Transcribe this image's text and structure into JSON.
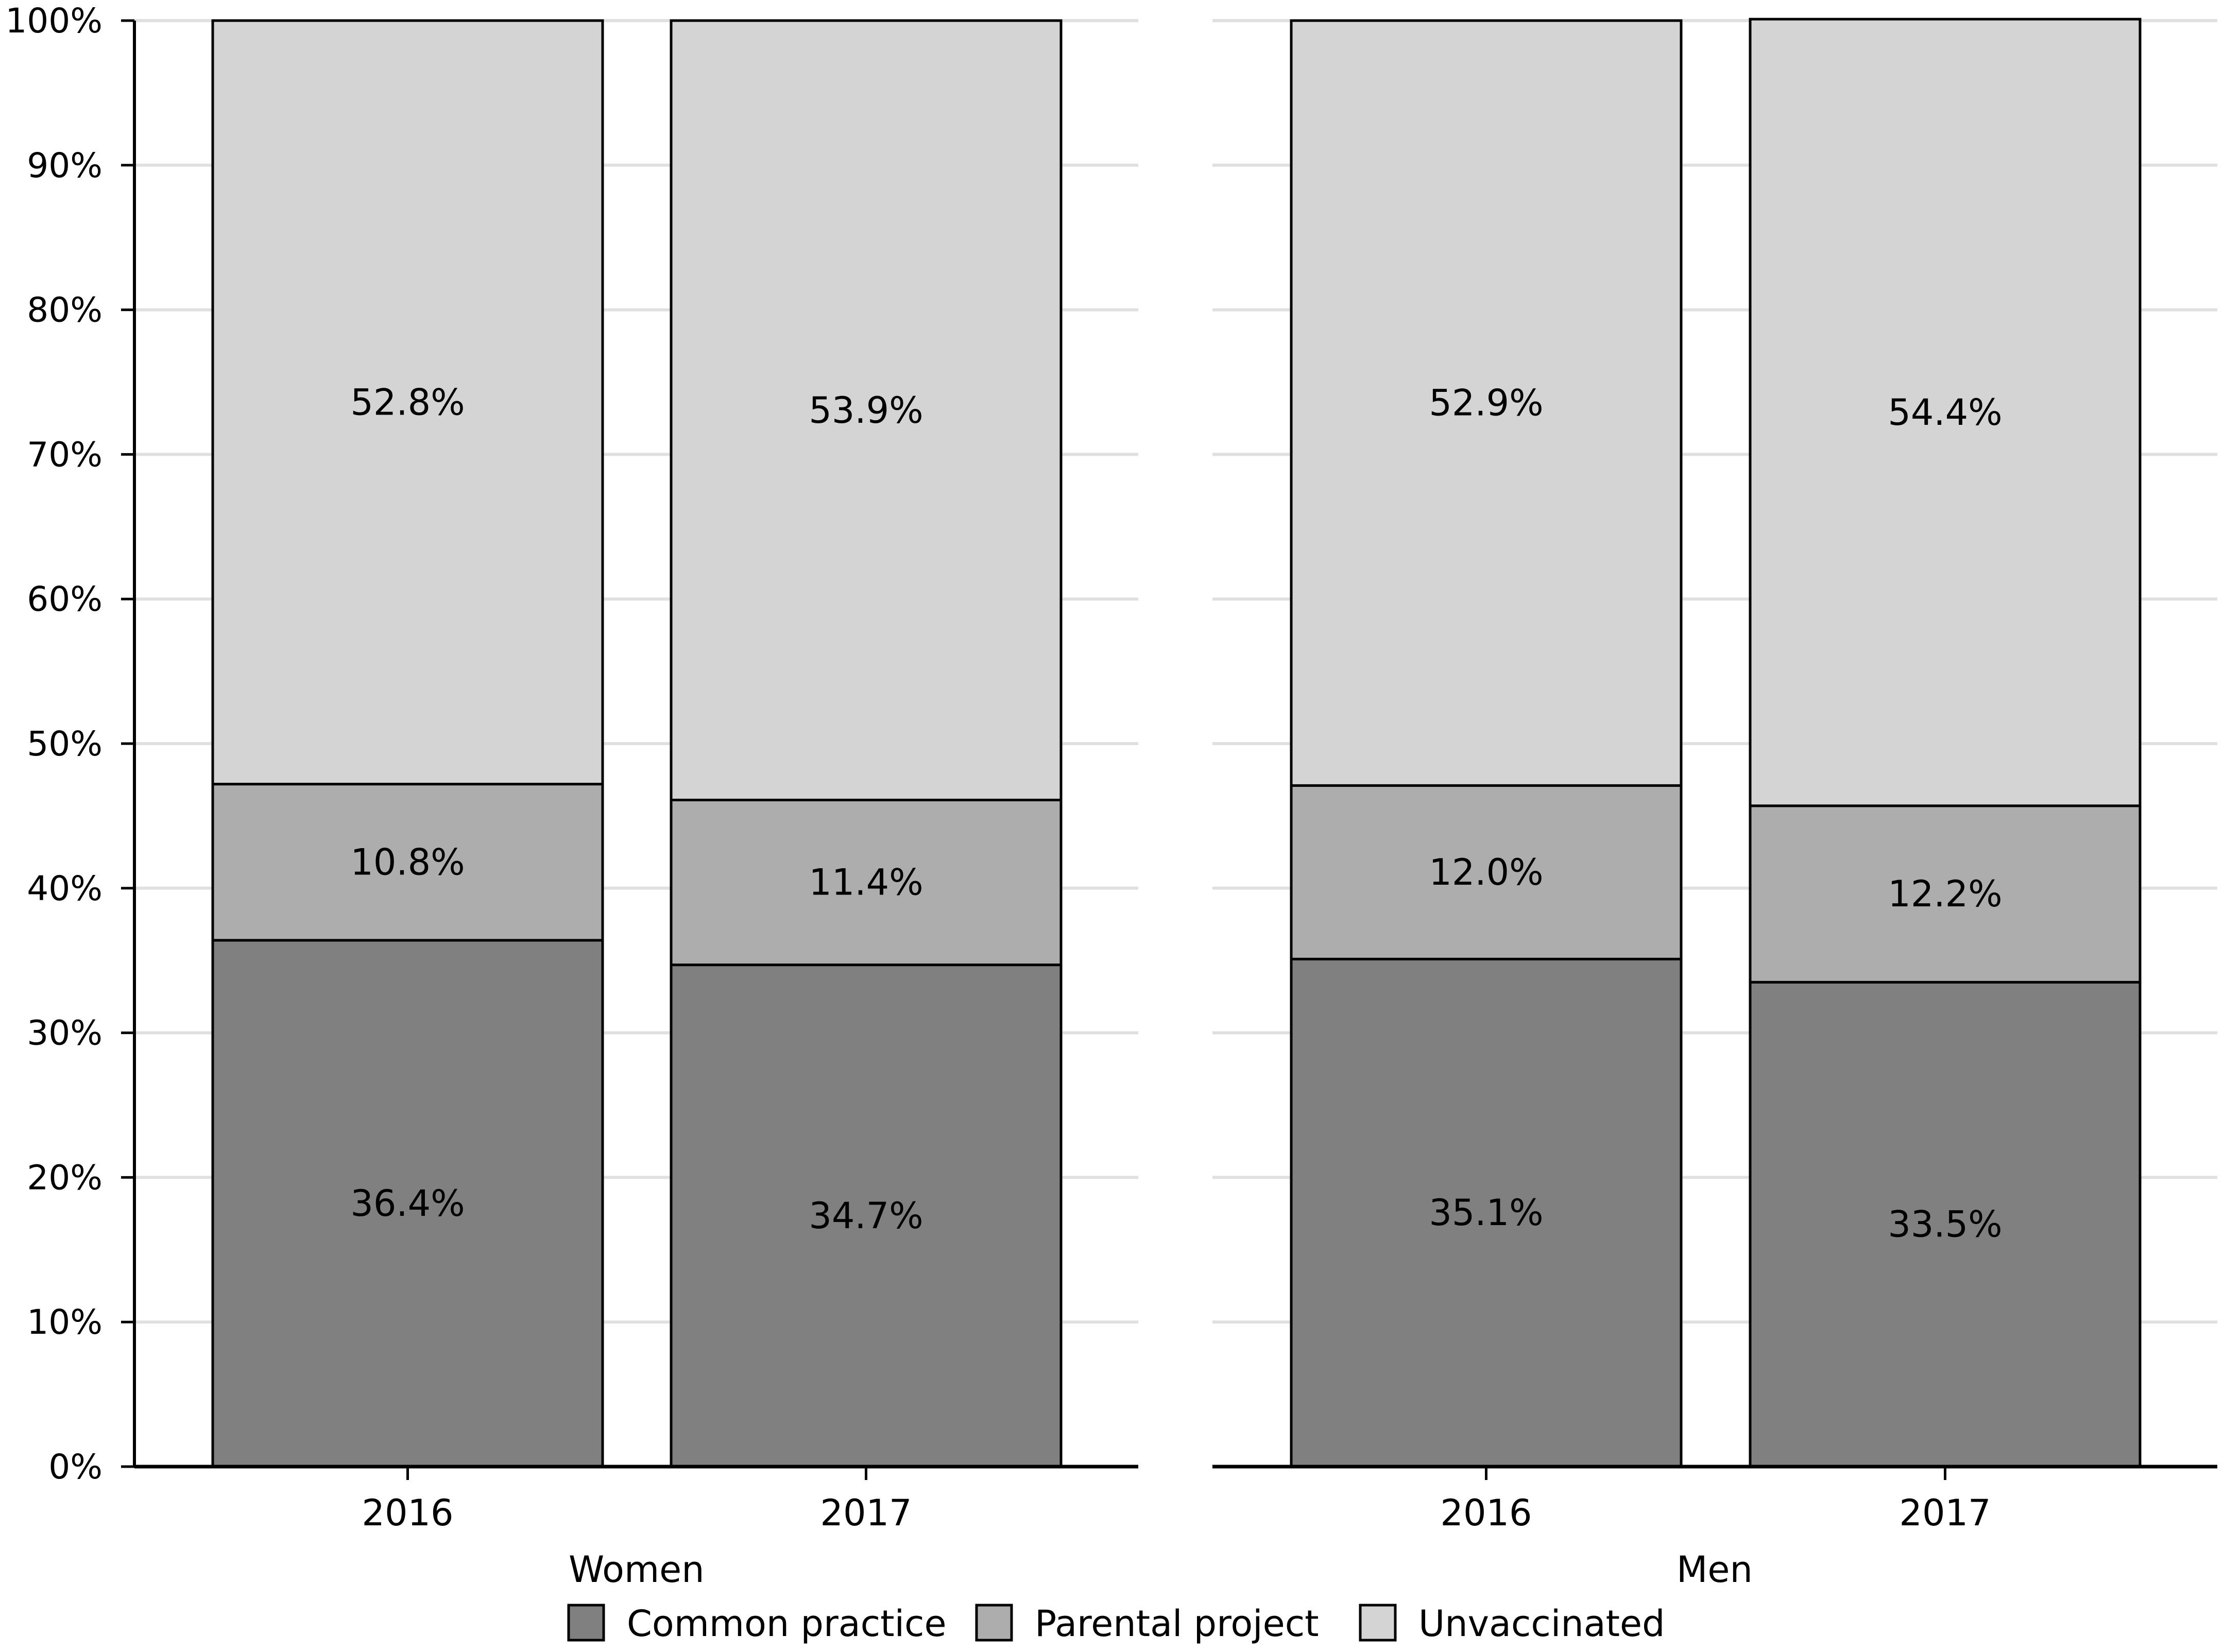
{
  "chart_data": {
    "type": "bar",
    "stacked": true,
    "percent_stacked": true,
    "panels": [
      {
        "name": "Women",
        "categories": [
          "2016",
          "2017"
        ],
        "series": [
          {
            "name": "Common practice",
            "values": [
              36.4,
              34.7
            ],
            "labels": [
              "36.4%",
              "34.7%"
            ]
          },
          {
            "name": "Parental project",
            "values": [
              10.8,
              11.4
            ],
            "labels": [
              "10.8%",
              "11.4%"
            ]
          },
          {
            "name": "Unvaccinated",
            "values": [
              52.8,
              53.9
            ],
            "labels": [
              "52.8%",
              "53.9%"
            ]
          }
        ]
      },
      {
        "name": "Men",
        "categories": [
          "2016",
          "2017"
        ],
        "series": [
          {
            "name": "Common practice",
            "values": [
              35.1,
              33.5
            ],
            "labels": [
              "35.1%",
              "33.5%"
            ]
          },
          {
            "name": "Parental project",
            "values": [
              12.0,
              12.2
            ],
            "labels": [
              "12.0%",
              "12.2%"
            ]
          },
          {
            "name": "Unvaccinated",
            "values": [
              52.9,
              54.4
            ],
            "labels": [
              "52.9%",
              "54.4%"
            ]
          }
        ]
      }
    ],
    "y_ticks": [
      "0%",
      "10%",
      "20%",
      "30%",
      "40%",
      "50%",
      "60%",
      "70%",
      "80%",
      "90%",
      "100%"
    ],
    "ylim": [
      0,
      100
    ],
    "grid": true,
    "legend_position": "bottom",
    "legend": [
      "Common practice",
      "Parental project",
      "Unvaccinated"
    ],
    "colors": {
      "Common practice": "#808080",
      "Parental project": "#adadad",
      "Unvaccinated": "#d4d4d4",
      "grid": "#e0e0e0",
      "outline": "#000000"
    }
  }
}
